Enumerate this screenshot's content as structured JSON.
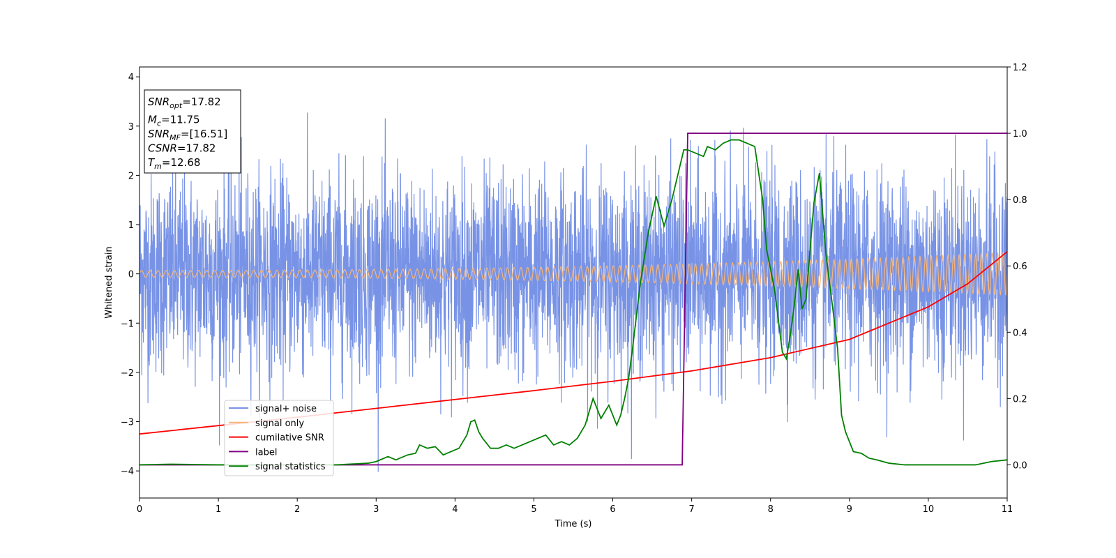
{
  "chart_data": {
    "type": "line",
    "xlabel": "Time (s)",
    "ylabel": "Whitened strain",
    "xlim": [
      0,
      11
    ],
    "ylim_left": [
      -4.55,
      4.2
    ],
    "ylim_right": [
      -0.1,
      1.2
    ],
    "x_ticks": [
      0,
      1,
      2,
      3,
      4,
      5,
      6,
      7,
      8,
      9,
      10,
      11
    ],
    "left_y_ticks": [
      -4,
      -3,
      -2,
      -1,
      0,
      1,
      2,
      3,
      4
    ],
    "right_y_ticks": [
      0.0,
      0.2,
      0.4,
      0.6,
      0.8,
      1.0,
      1.2
    ],
    "right_y_tick_labels": [
      "0.0",
      "0.2",
      "0.4",
      "0.6",
      "0.8",
      "1.0",
      "1.2"
    ],
    "grid": false,
    "legend_position": "lower-left",
    "info_box": {
      "lines": [
        {
          "name": "SNR",
          "sub": "opt",
          "value": "=17.82"
        },
        {
          "name": "M",
          "sub": "c",
          "value": "=11.75"
        },
        {
          "name": "SNR",
          "sub": "MF",
          "value": "=[16.51]"
        },
        {
          "name": "CSNR",
          "sub": "",
          "value": "=17.82"
        },
        {
          "name": "T",
          "sub": "m",
          "value": "=12.68"
        }
      ]
    },
    "series": [
      {
        "name": "signal+ noise",
        "axis": "left",
        "color": "#7893e6",
        "description_type": "noise",
        "std": 1.0,
        "range_approx": [
          -4.15,
          3.62
        ]
      },
      {
        "name": "signal only",
        "axis": "left",
        "color": "#f5b57a",
        "description_type": "chirp",
        "amplitude_start": 0.07,
        "amplitude_end": 0.43
      },
      {
        "name": "cumilative SNR",
        "axis": "left",
        "color": "#ff0000",
        "x": [
          0,
          1,
          2,
          3,
          4,
          5,
          6,
          7,
          8,
          9,
          10,
          10.5,
          11
        ],
        "y": [
          -3.25,
          -3.08,
          -2.91,
          -2.73,
          -2.55,
          -2.37,
          -2.18,
          -1.97,
          -1.7,
          -1.33,
          -0.67,
          -0.2,
          0.45
        ]
      },
      {
        "name": "label",
        "axis": "right",
        "color": "#800080",
        "x": [
          0,
          6.88,
          6.95,
          11
        ],
        "y": [
          0.0,
          0.0,
          1.0,
          1.0
        ]
      },
      {
        "name": "signal statistics",
        "axis": "right",
        "color": "#008000",
        "x": [
          0,
          0.4,
          1.0,
          2.0,
          2.5,
          2.9,
          3.0,
          3.15,
          3.25,
          3.4,
          3.5,
          3.55,
          3.65,
          3.75,
          3.85,
          3.95,
          4.05,
          4.15,
          4.2,
          4.25,
          4.3,
          4.35,
          4.45,
          4.55,
          4.65,
          4.75,
          4.85,
          4.95,
          5.05,
          5.15,
          5.25,
          5.35,
          5.45,
          5.55,
          5.65,
          5.75,
          5.85,
          5.95,
          6.05,
          6.1,
          6.15,
          6.2,
          6.25,
          6.3,
          6.35,
          6.45,
          6.55,
          6.65,
          6.75,
          6.85,
          6.9,
          6.95,
          7.05,
          7.15,
          7.2,
          7.3,
          7.4,
          7.5,
          7.6,
          7.7,
          7.8,
          7.9,
          7.95,
          8.05,
          8.15,
          8.2,
          8.25,
          8.3,
          8.35,
          8.4,
          8.45,
          8.55,
          8.62,
          8.7,
          8.8,
          8.85,
          8.9,
          8.95,
          9.05,
          9.15,
          9.25,
          9.35,
          9.5,
          9.7,
          10.0,
          10.3,
          10.6,
          10.8,
          11.0
        ],
        "y": [
          0.0,
          0.002,
          0.0,
          0.0,
          0.0,
          0.005,
          0.01,
          0.025,
          0.015,
          0.03,
          0.035,
          0.06,
          0.05,
          0.055,
          0.03,
          0.04,
          0.05,
          0.09,
          0.13,
          0.135,
          0.1,
          0.08,
          0.05,
          0.05,
          0.06,
          0.05,
          0.06,
          0.07,
          0.08,
          0.09,
          0.06,
          0.07,
          0.06,
          0.08,
          0.12,
          0.2,
          0.14,
          0.18,
          0.12,
          0.15,
          0.2,
          0.26,
          0.35,
          0.45,
          0.55,
          0.7,
          0.81,
          0.72,
          0.8,
          0.9,
          0.95,
          0.95,
          0.94,
          0.93,
          0.96,
          0.95,
          0.97,
          0.98,
          0.98,
          0.97,
          0.96,
          0.8,
          0.65,
          0.53,
          0.34,
          0.32,
          0.39,
          0.48,
          0.59,
          0.47,
          0.5,
          0.79,
          0.88,
          0.64,
          0.45,
          0.35,
          0.15,
          0.1,
          0.04,
          0.035,
          0.02,
          0.015,
          0.005,
          0.0,
          0.0,
          0.0,
          0.0,
          0.01,
          0.015
        ]
      }
    ]
  }
}
